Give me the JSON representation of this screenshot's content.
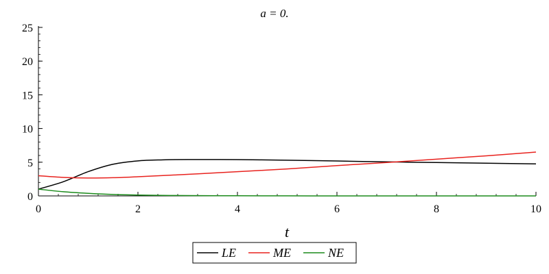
{
  "chart_data": {
    "type": "line",
    "title": "a = 0.",
    "xlabel": "t",
    "ylabel": "",
    "xlim": [
      0,
      10
    ],
    "ylim": [
      0,
      25
    ],
    "xticks": [
      0,
      2,
      4,
      6,
      8,
      10
    ],
    "yticks": [
      0,
      5,
      10,
      15,
      20,
      25
    ],
    "grid": false,
    "legend_position": "bottom-center",
    "series": [
      {
        "name": "LE",
        "color": "#000000",
        "x": [
          0,
          0.5,
          1,
          1.5,
          2,
          2.5,
          3,
          4,
          5,
          6,
          7,
          8,
          9,
          10
        ],
        "y": [
          1.0,
          2.1,
          3.6,
          4.7,
          5.2,
          5.35,
          5.4,
          5.38,
          5.3,
          5.18,
          5.05,
          4.95,
          4.85,
          4.75
        ]
      },
      {
        "name": "ME",
        "color": "#e8211d",
        "x": [
          0,
          0.5,
          1,
          1.5,
          2,
          3,
          4,
          5,
          6,
          7,
          8,
          9,
          10
        ],
        "y": [
          3.0,
          2.75,
          2.65,
          2.7,
          2.85,
          3.2,
          3.6,
          4.0,
          4.5,
          4.95,
          5.45,
          5.95,
          6.5
        ]
      },
      {
        "name": "NE",
        "color": "#1a8a1a",
        "x": [
          0,
          0.5,
          1,
          1.5,
          2,
          2.5,
          3,
          4,
          5,
          6,
          7,
          8,
          9,
          10
        ],
        "y": [
          1.0,
          0.62,
          0.38,
          0.22,
          0.13,
          0.08,
          0.05,
          0.02,
          0.01,
          0.0,
          0.0,
          0.0,
          0.0,
          0.0
        ]
      }
    ]
  }
}
